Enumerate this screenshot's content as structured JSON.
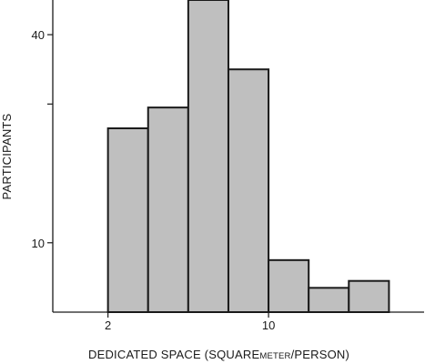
{
  "chart_data": {
    "type": "bar",
    "title": "",
    "xlabel_parts": [
      "DEDICATED SPACE (SQUARE",
      "METER",
      "/PERSON)"
    ],
    "ylabel": "PARTICIPANTS",
    "x_ticks": [
      {
        "value": 2,
        "label": "2"
      },
      {
        "value": 10,
        "label": "10"
      }
    ],
    "y_ticks": [
      {
        "value": 10,
        "label": "10"
      },
      {
        "value": 30,
        "label": ""
      },
      {
        "value": 40,
        "label": "40"
      },
      {
        "value": 50,
        "label": ""
      }
    ],
    "bins": [
      {
        "x0": 2,
        "x1": 4,
        "value": 26.5
      },
      {
        "x0": 4,
        "x1": 6,
        "value": 29.5
      },
      {
        "x0": 6,
        "x1": 8,
        "value": 45
      },
      {
        "x0": 8,
        "x1": 10,
        "value": 35
      },
      {
        "x0": 10,
        "x1": 12,
        "value": 7.5
      },
      {
        "x0": 12,
        "x1": 14,
        "value": 3.5
      },
      {
        "x0": 14,
        "x1": 16,
        "value": 4.5
      }
    ],
    "xlim": [
      -0.75,
      17.75
    ],
    "ylim": [
      0,
      45
    ],
    "grid": false,
    "colors": {
      "bar_fill": "#bfbfbf",
      "bar_stroke": "#1a1a1a",
      "axis": "#1a1a1a"
    }
  }
}
